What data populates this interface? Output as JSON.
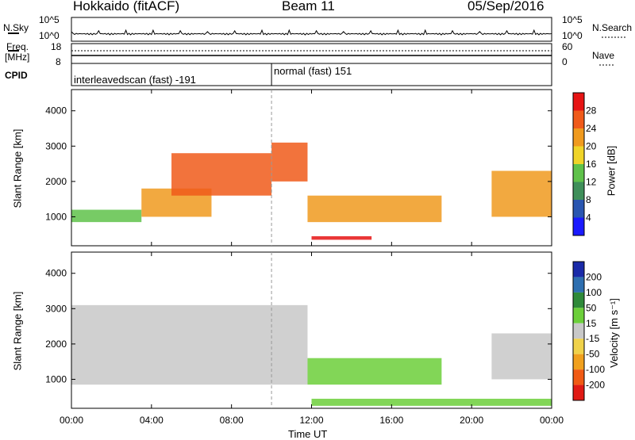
{
  "header": {
    "site": "Hokkaido (fitACF)",
    "beam": "Beam 11",
    "date": "05/Sep/2016"
  },
  "noise_panel": {
    "left_label": "N.Sky",
    "left_ticks": [
      "10^5",
      "10^0"
    ],
    "right_label": "N.Search",
    "right_ticks": [
      "10^5",
      "10^0"
    ]
  },
  "freq_panel": {
    "left_label_top": "Freq.",
    "left_label_bottom": "[MHz]",
    "left_ticks": [
      "18",
      "8"
    ],
    "right_label": "Nave",
    "right_ticks": [
      "60",
      "0"
    ]
  },
  "cpid_panel": {
    "label": "CPID",
    "modes": [
      {
        "name": "interleavedscan (fast) -191",
        "start": "00:00"
      },
      {
        "name": "normal (fast) 151",
        "start": "10:00"
      }
    ]
  },
  "x_axis": {
    "label": "Time UT",
    "ticks": [
      "00:00",
      "04:00",
      "08:00",
      "12:00",
      "16:00",
      "20:00",
      "00:00"
    ]
  },
  "power_panel": {
    "ylabel": "Slant Range [km]",
    "yticks": [
      "1000",
      "2000",
      "3000",
      "4000"
    ],
    "colorbar_label": "Power [dB]",
    "colorbar_ticks": [
      "4",
      "8",
      "12",
      "16",
      "20",
      "24",
      "28"
    ],
    "colorbar_colors": [
      "#1a1aff",
      "#2a56b0",
      "#3f8f5a",
      "#5fc24a",
      "#f0d428",
      "#f09a1e",
      "#f05a1a",
      "#e61414"
    ]
  },
  "velocity_panel": {
    "ylabel": "Slant Range [km]",
    "yticks": [
      "1000",
      "2000",
      "3000",
      "4000"
    ],
    "colorbar_label": "Velocity [m s⁻¹]",
    "colorbar_ticks": [
      "200",
      "100",
      "50",
      "15",
      "-15",
      "-50",
      "-100",
      "-200"
    ],
    "colorbar_colors": [
      "#1a2aa8",
      "#2e6fb0",
      "#2f8a3a",
      "#6ccf3a",
      "#c8c8c8",
      "#f0d24a",
      "#f0a01e",
      "#f05a14",
      "#e01a14"
    ]
  },
  "chart_data": [
    {
      "type": "heatmap",
      "title": "Power",
      "xlabel": "Time UT",
      "ylabel": "Slant Range [km]",
      "xlim": [
        0,
        24
      ],
      "ylim": [
        180,
        4600
      ],
      "colorbar": {
        "label": "Power [dB]",
        "range": [
          0,
          32
        ]
      },
      "regions": [
        {
          "t0": 0.0,
          "t1": 3.5,
          "r0": 850,
          "r1": 1200,
          "value": 12
        },
        {
          "t0": 3.5,
          "t1": 7.0,
          "r0": 1000,
          "r1": 1800,
          "value": 20
        },
        {
          "t0": 5.0,
          "t1": 10.0,
          "r0": 1600,
          "r1": 2800,
          "value": 26
        },
        {
          "t0": 10.0,
          "t1": 11.8,
          "r0": 2000,
          "r1": 3100,
          "value": 24
        },
        {
          "t0": 11.8,
          "t1": 18.5,
          "r0": 850,
          "r1": 1600,
          "value": 22
        },
        {
          "t0": 12.0,
          "t1": 15.0,
          "r0": 350,
          "r1": 450,
          "value": 28
        },
        {
          "t0": 21.0,
          "t1": 24.0,
          "r0": 1000,
          "r1": 2300,
          "value": 22
        }
      ]
    },
    {
      "type": "heatmap",
      "title": "Velocity",
      "xlabel": "Time UT",
      "ylabel": "Slant Range [km]",
      "xlim": [
        0,
        24
      ],
      "ylim": [
        180,
        4600
      ],
      "colorbar": {
        "label": "Velocity [m s⁻¹]",
        "range": [
          -200,
          200
        ]
      },
      "regions": [
        {
          "t0": 0.0,
          "t1": 11.8,
          "r0": 850,
          "r1": 3100,
          "value": 0
        },
        {
          "t0": 11.8,
          "t1": 18.5,
          "r0": 850,
          "r1": 1600,
          "value": 40
        },
        {
          "t0": 12.0,
          "t1": 24.0,
          "r0": 250,
          "r1": 450,
          "value": 30
        },
        {
          "t0": 21.0,
          "t1": 24.0,
          "r0": 1000,
          "r1": 2300,
          "value": 0
        }
      ]
    }
  ]
}
